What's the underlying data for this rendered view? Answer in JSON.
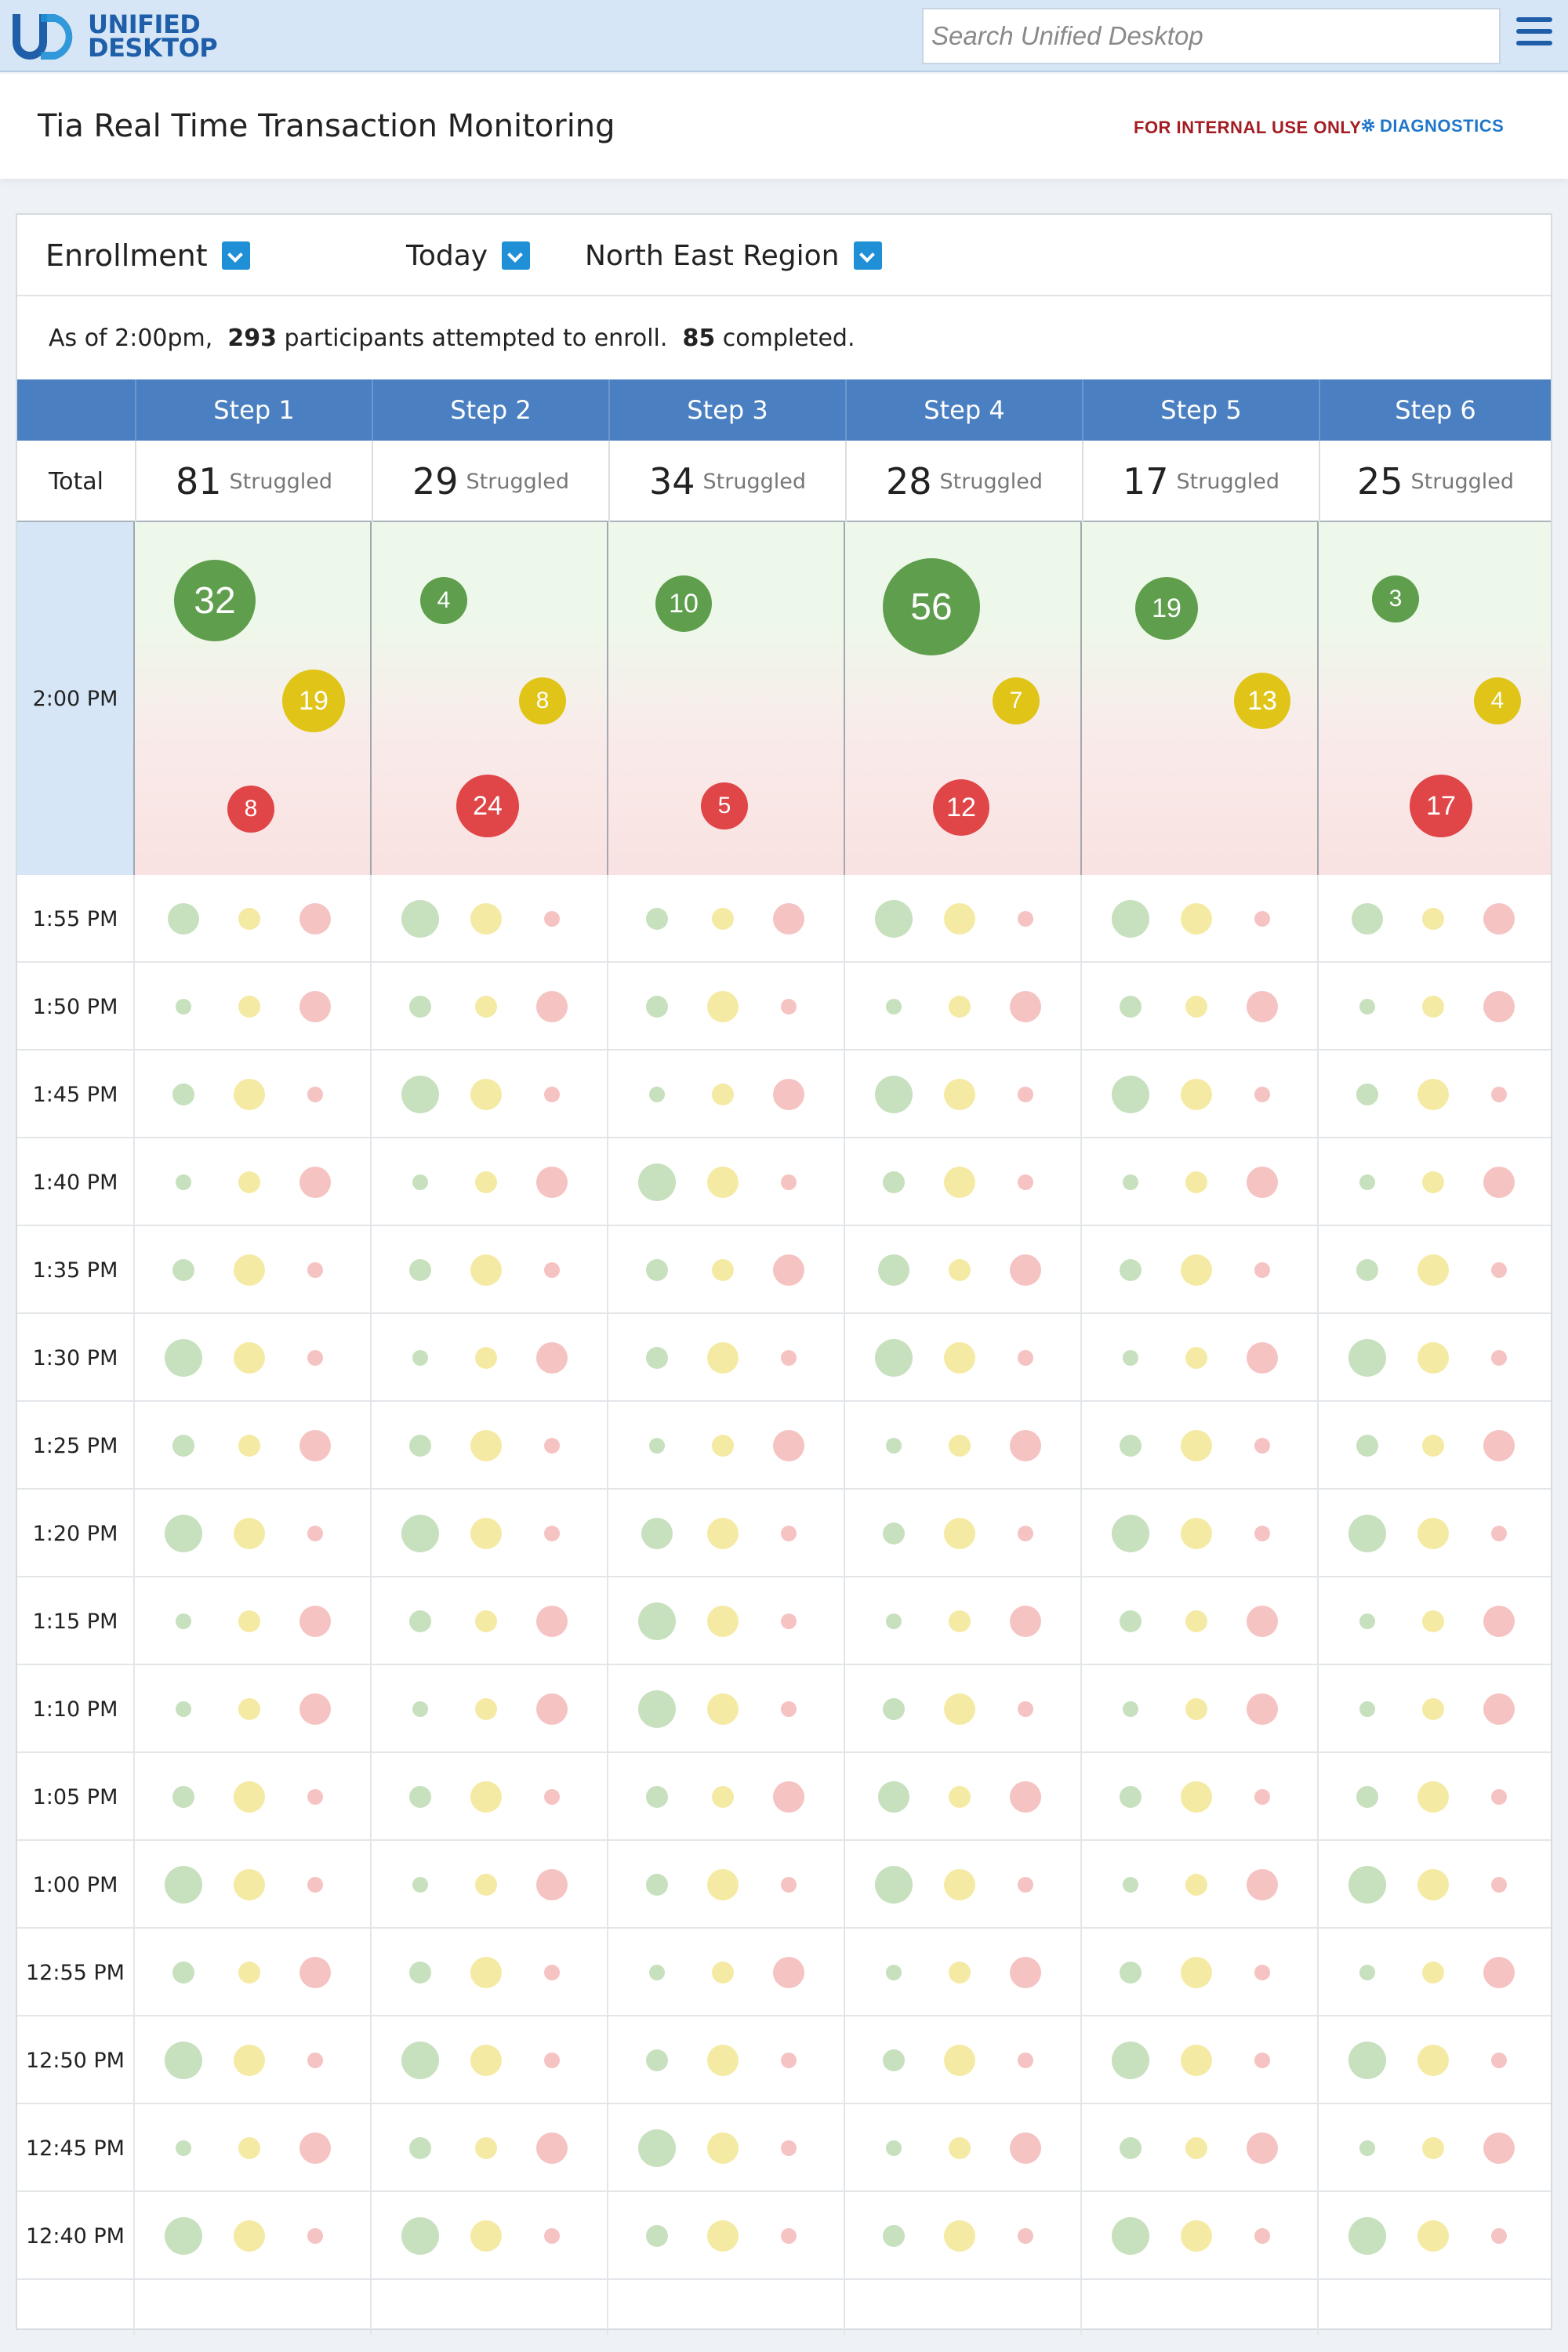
{
  "app": {
    "logo_top": "UNIFIED",
    "logo_bottom": "DESKTOP",
    "search_placeholder": "Search Unified Desktop"
  },
  "header": {
    "title": "Tia Real Time Transaction Monitoring",
    "internal_label": "FOR INTERNAL USE ONLY",
    "diagnostics_label": "DIAGNOSTICS"
  },
  "filters": {
    "transaction": "Enrollment",
    "period": "Today",
    "region": "North East Region"
  },
  "summary": {
    "prefix": "As of 2:00pm,  ",
    "attempted": "293",
    "mid": " participants attempted to enroll.  ",
    "completed": "85",
    "suffix": " completed."
  },
  "table": {
    "total_label": "Total",
    "struggled_label": "Struggled",
    "steps": [
      {
        "name": "Step 1",
        "struggled": "81"
      },
      {
        "name": "Step 2",
        "struggled": "29"
      },
      {
        "name": "Step 3",
        "struggled": "34"
      },
      {
        "name": "Step 4",
        "struggled": "28"
      },
      {
        "name": "Step 5",
        "struggled": "17"
      },
      {
        "name": "Step 6",
        "struggled": "25"
      }
    ],
    "current": {
      "time": "2:00 PM",
      "cells": [
        {
          "green": 32,
          "yellow": 19,
          "red": 8
        },
        {
          "green": 4,
          "yellow": 8,
          "red": 24
        },
        {
          "green": 10,
          "yellow": null,
          "red": 5
        },
        {
          "green": 56,
          "yellow": 7,
          "red": 12
        },
        {
          "green": 19,
          "yellow": 13,
          "red": null
        },
        {
          "green": 3,
          "yellow": 4,
          "red": 17
        }
      ]
    },
    "history": [
      {
        "time": "1:55 PM",
        "sizes": [
          [
            2,
            1,
            2
          ],
          [
            3,
            2,
            0
          ],
          [
            1,
            1,
            2
          ],
          [
            3,
            2,
            0
          ],
          [
            3,
            2,
            0
          ],
          [
            2,
            1,
            2
          ]
        ]
      },
      {
        "time": "1:50 PM",
        "sizes": [
          [
            0,
            1,
            2
          ],
          [
            1,
            1,
            2
          ],
          [
            1,
            2,
            0
          ],
          [
            0,
            1,
            2
          ],
          [
            1,
            1,
            2
          ],
          [
            0,
            1,
            2
          ]
        ]
      },
      {
        "time": "1:45 PM",
        "sizes": [
          [
            1,
            2,
            0
          ],
          [
            3,
            2,
            0
          ],
          [
            0,
            1,
            2
          ],
          [
            3,
            2,
            0
          ],
          [
            3,
            2,
            0
          ],
          [
            1,
            2,
            0
          ]
        ]
      },
      {
        "time": "1:40 PM",
        "sizes": [
          [
            0,
            1,
            2
          ],
          [
            0,
            1,
            2
          ],
          [
            3,
            2,
            0
          ],
          [
            1,
            2,
            0
          ],
          [
            0,
            1,
            2
          ],
          [
            0,
            1,
            2
          ]
        ]
      },
      {
        "time": "1:35 PM",
        "sizes": [
          [
            1,
            2,
            0
          ],
          [
            1,
            2,
            0
          ],
          [
            1,
            1,
            2
          ],
          [
            2,
            1,
            2
          ],
          [
            1,
            2,
            0
          ],
          [
            1,
            2,
            0
          ]
        ]
      },
      {
        "time": "1:30 PM",
        "sizes": [
          [
            3,
            2,
            0
          ],
          [
            0,
            1,
            2
          ],
          [
            1,
            2,
            0
          ],
          [
            3,
            2,
            0
          ],
          [
            0,
            1,
            2
          ],
          [
            3,
            2,
            0
          ]
        ]
      },
      {
        "time": "1:25 PM",
        "sizes": [
          [
            1,
            1,
            2
          ],
          [
            1,
            2,
            0
          ],
          [
            0,
            1,
            2
          ],
          [
            0,
            1,
            2
          ],
          [
            1,
            2,
            0
          ],
          [
            1,
            1,
            2
          ]
        ]
      },
      {
        "time": "1:20 PM",
        "sizes": [
          [
            3,
            2,
            0
          ],
          [
            3,
            2,
            0
          ],
          [
            2,
            2,
            0
          ],
          [
            1,
            2,
            0
          ],
          [
            3,
            2,
            0
          ],
          [
            3,
            2,
            0
          ]
        ]
      },
      {
        "time": "1:15 PM",
        "sizes": [
          [
            0,
            1,
            2
          ],
          [
            1,
            1,
            2
          ],
          [
            3,
            2,
            0
          ],
          [
            0,
            1,
            2
          ],
          [
            1,
            1,
            2
          ],
          [
            0,
            1,
            2
          ]
        ]
      },
      {
        "time": "1:10 PM",
        "sizes": [
          [
            0,
            1,
            2
          ],
          [
            0,
            1,
            2
          ],
          [
            3,
            2,
            0
          ],
          [
            1,
            2,
            0
          ],
          [
            0,
            1,
            2
          ],
          [
            0,
            1,
            2
          ]
        ]
      },
      {
        "time": "1:05 PM",
        "sizes": [
          [
            1,
            2,
            0
          ],
          [
            1,
            2,
            0
          ],
          [
            1,
            1,
            2
          ],
          [
            2,
            1,
            2
          ],
          [
            1,
            2,
            0
          ],
          [
            1,
            2,
            0
          ]
        ]
      },
      {
        "time": "1:00 PM",
        "sizes": [
          [
            3,
            2,
            0
          ],
          [
            0,
            1,
            2
          ],
          [
            1,
            2,
            0
          ],
          [
            3,
            2,
            0
          ],
          [
            0,
            1,
            2
          ],
          [
            3,
            2,
            0
          ]
        ]
      },
      {
        "time": "12:55 PM",
        "sizes": [
          [
            1,
            1,
            2
          ],
          [
            1,
            2,
            0
          ],
          [
            0,
            1,
            2
          ],
          [
            0,
            1,
            2
          ],
          [
            1,
            2,
            0
          ],
          [
            0,
            1,
            2
          ]
        ]
      },
      {
        "time": "12:50 PM",
        "sizes": [
          [
            3,
            2,
            0
          ],
          [
            3,
            2,
            0
          ],
          [
            1,
            2,
            0
          ],
          [
            1,
            2,
            0
          ],
          [
            3,
            2,
            0
          ],
          [
            3,
            2,
            0
          ]
        ]
      },
      {
        "time": "12:45 PM",
        "sizes": [
          [
            0,
            1,
            2
          ],
          [
            1,
            1,
            2
          ],
          [
            3,
            2,
            0
          ],
          [
            0,
            1,
            2
          ],
          [
            1,
            1,
            2
          ],
          [
            0,
            1,
            2
          ]
        ]
      },
      {
        "time": "12:40 PM",
        "sizes": [
          [
            3,
            2,
            0
          ],
          [
            3,
            2,
            0
          ],
          [
            1,
            2,
            0
          ],
          [
            1,
            2,
            0
          ],
          [
            3,
            2,
            0
          ],
          [
            3,
            2,
            0
          ]
        ]
      }
    ]
  },
  "colors": {
    "brand": "#1f5ea8",
    "header_blue": "#4a7fc1",
    "green": "#5e9e4d",
    "yellow": "#e0c417",
    "red": "#e04547",
    "internal_red": "#a31d22"
  }
}
